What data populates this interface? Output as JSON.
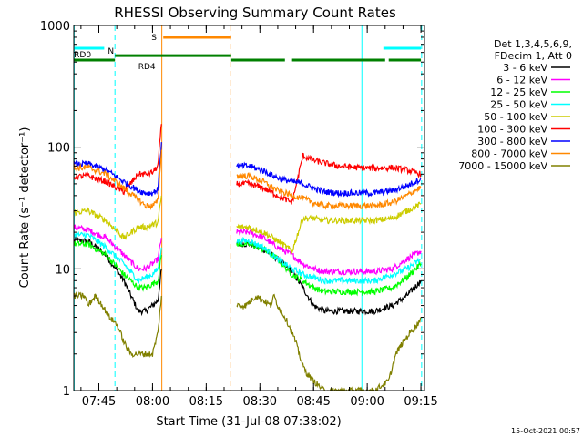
{
  "chart_data": {
    "type": "line",
    "title": "RHESSI Observing Summary Count Rates",
    "xlabel": "Start Time (31-Jul-08 07:38:02)",
    "ylabel": "Count Rate (s⁻¹ detector⁻¹)",
    "yscale": "log",
    "ylim": [
      1,
      1000
    ],
    "xlim_minutes": [
      0,
      98
    ],
    "x_ticks": [
      {
        "t": 7,
        "label": "07:45"
      },
      {
        "t": 22,
        "label": "08:00"
      },
      {
        "t": 37,
        "label": "08:15"
      },
      {
        "t": 52,
        "label": "08:30"
      },
      {
        "t": 67,
        "label": "08:45"
      },
      {
        "t": 82,
        "label": "09:00"
      },
      {
        "t": 97,
        "label": "09:15"
      }
    ],
    "y_ticks": [
      {
        "v": 1,
        "label": "1"
      },
      {
        "v": 10,
        "label": "10"
      },
      {
        "v": 100,
        "label": "100"
      },
      {
        "v": 1000,
        "label": "1000"
      }
    ],
    "legend_header": [
      "Det 1,3,4,5,6,9,",
      "FDecim 1, Att 0"
    ],
    "legend_placement": "right",
    "series": [
      {
        "name": "3 - 6 keV",
        "color": "#000000",
        "segments": [
          {
            "t": [
              0,
              4,
              9,
              14,
              18,
              20,
              22,
              23.5,
              24.5
            ],
            "v": [
              17,
              17,
              13,
              8,
              4.5,
              4.5,
              5,
              5.5,
              10
            ]
          },
          {
            "t": [
              45.5,
              49,
              53,
              57,
              61,
              64,
              67,
              70,
              74,
              79,
              84,
              89,
              93,
              97
            ],
            "v": [
              16,
              16,
              14.5,
              12,
              9.5,
              7,
              5,
              4.5,
              4.5,
              4.5,
              4.5,
              5,
              6,
              8
            ]
          }
        ]
      },
      {
        "name": "6 - 12 keV",
        "color": "#ff00ff",
        "segments": [
          {
            "t": [
              0,
              4,
              9,
              14,
              18,
              20,
              22,
              23.5,
              24.5
            ],
            "v": [
              22,
              21,
              18,
              13,
              10,
              10,
              11,
              12,
              18
            ]
          },
          {
            "t": [
              45.5,
              49,
              53,
              57,
              61,
              64,
              67,
              70,
              74,
              79,
              84,
              89,
              93,
              97
            ],
            "v": [
              20,
              20,
              18,
              15,
              13,
              11,
              10,
              9.5,
              9.5,
              9.5,
              9.5,
              10,
              12,
              14
            ]
          }
        ]
      },
      {
        "name": "12 - 25 keV",
        "color": "#00ff00",
        "segments": [
          {
            "t": [
              0,
              4,
              9,
              14,
              18,
              20,
              22,
              23.5,
              24.5
            ],
            "v": [
              16,
              16,
              13,
              9,
              7,
              7,
              7.5,
              8,
              13
            ]
          },
          {
            "t": [
              45.5,
              49,
              53,
              57,
              61,
              64,
              67,
              70,
              74,
              79,
              84,
              89,
              93,
              97
            ],
            "v": [
              16,
              16,
              14.5,
              12,
              9,
              8,
              7,
              6.5,
              6.5,
              6.5,
              6.5,
              7,
              8.5,
              11
            ]
          }
        ]
      },
      {
        "name": "25 - 50 keV",
        "color": "#00ffff",
        "segments": [
          {
            "t": [
              0,
              4,
              9,
              14,
              18,
              20,
              22,
              23.5,
              24.5
            ],
            "v": [
              19,
              19,
              15,
              11,
              8,
              8.5,
              9,
              10,
              15
            ]
          },
          {
            "t": [
              45.5,
              49,
              53,
              57,
              61,
              64,
              67,
              70,
              74,
              79,
              84,
              89,
              93,
              97
            ],
            "v": [
              17,
              17,
              15,
              12,
              10,
              9,
              8.5,
              8,
              8,
              8,
              8,
              9,
              10,
              12
            ]
          }
        ]
      },
      {
        "name": "50 - 100 keV",
        "color": "#cccc00",
        "segments": [
          {
            "t": [
              0,
              4,
              9,
              14,
              18,
              20,
              22,
              23.5,
              24.5
            ],
            "v": [
              29,
              30,
              25,
              18,
              22,
              22,
              23,
              24,
              40
            ]
          },
          {
            "t": [
              45.5,
              49,
              53,
              57,
              61,
              64,
              67,
              70,
              74,
              79,
              84,
              89,
              93,
              97
            ],
            "v": [
              22,
              22,
              20,
              17,
              14,
              26,
              26,
              25,
              25,
              25,
              25,
              26,
              30,
              34
            ]
          }
        ]
      },
      {
        "name": "100 - 300 keV",
        "color": "#ff0000",
        "segments": [
          {
            "t": [
              0,
              4,
              9,
              14,
              18,
              20,
              22,
              23.5,
              24.5
            ],
            "v": [
              57,
              58,
              52,
              43,
              60,
              60,
              62,
              70,
              155
            ]
          },
          {
            "t": [
              45.5,
              49,
              53,
              57,
              61,
              64,
              67,
              70,
              74,
              79,
              84,
              89,
              93,
              97
            ],
            "v": [
              50,
              50,
              46,
              40,
              35,
              85,
              78,
              74,
              70,
              68,
              67,
              68,
              65,
              60
            ]
          }
        ]
      },
      {
        "name": "300 - 800 keV",
        "color": "#0000ff",
        "segments": [
          {
            "t": [
              0,
              4,
              9,
              14,
              18,
              20,
              22,
              23.5,
              24.5
            ],
            "v": [
              72,
              73,
              65,
              52,
              44,
              42,
              42,
              45,
              110
            ]
          },
          {
            "t": [
              45.5,
              49,
              53,
              57,
              61,
              64,
              67,
              70,
              74,
              79,
              84,
              89,
              93,
              97
            ],
            "v": [
              70,
              70,
              64,
              56,
              52,
              50,
              46,
              43,
              42,
              42,
              42,
              44,
              48,
              55
            ]
          }
        ]
      },
      {
        "name": "800 - 7000 keV",
        "color": "#ff8800",
        "segments": [
          {
            "t": [
              0,
              4,
              9,
              14,
              18,
              20,
              22,
              23.5,
              24.5
            ],
            "v": [
              67,
              68,
              60,
              46,
              37,
              33,
              33,
              36,
              95
            ]
          },
          {
            "t": [
              45.5,
              49,
              53,
              57,
              61,
              64,
              67,
              70,
              74,
              79,
              84,
              89,
              93,
              97
            ],
            "v": [
              58,
              58,
              52,
              44,
              40,
              38,
              35,
              33,
              33,
              33,
              33,
              35,
              40,
              47
            ]
          }
        ]
      },
      {
        "name": "7000 - 15000 keV",
        "color": "#808000",
        "segments": [
          {
            "t": [
              0,
              3,
              4,
              6,
              8,
              10,
              12,
              13,
              14,
              15,
              16,
              18,
              20,
              22,
              23.5,
              24.5
            ],
            "v": [
              6,
              6,
              5,
              6,
              5,
              4,
              3.5,
              3,
              2.5,
              2.2,
              2,
              2,
              2,
              2,
              3,
              6
            ]
          },
          {
            "t": [
              45.5,
              48,
              51,
              53,
              55,
              56,
              57,
              58,
              59,
              60,
              61,
              62,
              63,
              64,
              65,
              66,
              67,
              70,
              74,
              79,
              84,
              88,
              90,
              92,
              94,
              96,
              97
            ],
            "v": [
              5,
              5,
              6,
              5.5,
              5,
              6,
              5,
              4.5,
              4,
              3.5,
              3,
              2.5,
              2,
              1.6,
              1.4,
              1.3,
              1.2,
              1,
              1,
              1,
              1,
              1.2,
              2,
              2.5,
              3,
              3.5,
              4
            ]
          }
        ]
      }
    ],
    "state_bars": [
      {
        "label": "N",
        "color": "#00ffff",
        "v": 650,
        "segments": [
          [
            0,
            8.5
          ],
          [
            86.5,
            97
          ]
        ]
      },
      {
        "label": "S",
        "color": "#ff8800",
        "v": 800,
        "segments": [
          [
            25,
            44
          ]
        ]
      },
      {
        "label": "RD0",
        "color": "#008000",
        "v": 565,
        "segments": [
          [
            11.5,
            44
          ]
        ]
      },
      {
        "label": "RD4",
        "color": "#008000",
        "v": 520,
        "segments": [
          [
            0,
            11.5
          ],
          [
            44,
            59
          ],
          [
            61,
            87
          ],
          [
            88,
            97
          ]
        ]
      }
    ],
    "vertical_markers": [
      {
        "t": 0.1,
        "color": "#00ffff",
        "dashed": false
      },
      {
        "t": 11.5,
        "color": "#00ffff",
        "dashed": true
      },
      {
        "t": 24.6,
        "color": "#ff8800",
        "dashed": false
      },
      {
        "t": 43.7,
        "color": "#ff8800",
        "dashed": true
      },
      {
        "t": 80.5,
        "color": "#00ffff",
        "dashed": false
      },
      {
        "t": 97.2,
        "color": "#00ffff",
        "dashed": true
      }
    ],
    "footer_date": "15-Oct-2021 00:57"
  }
}
